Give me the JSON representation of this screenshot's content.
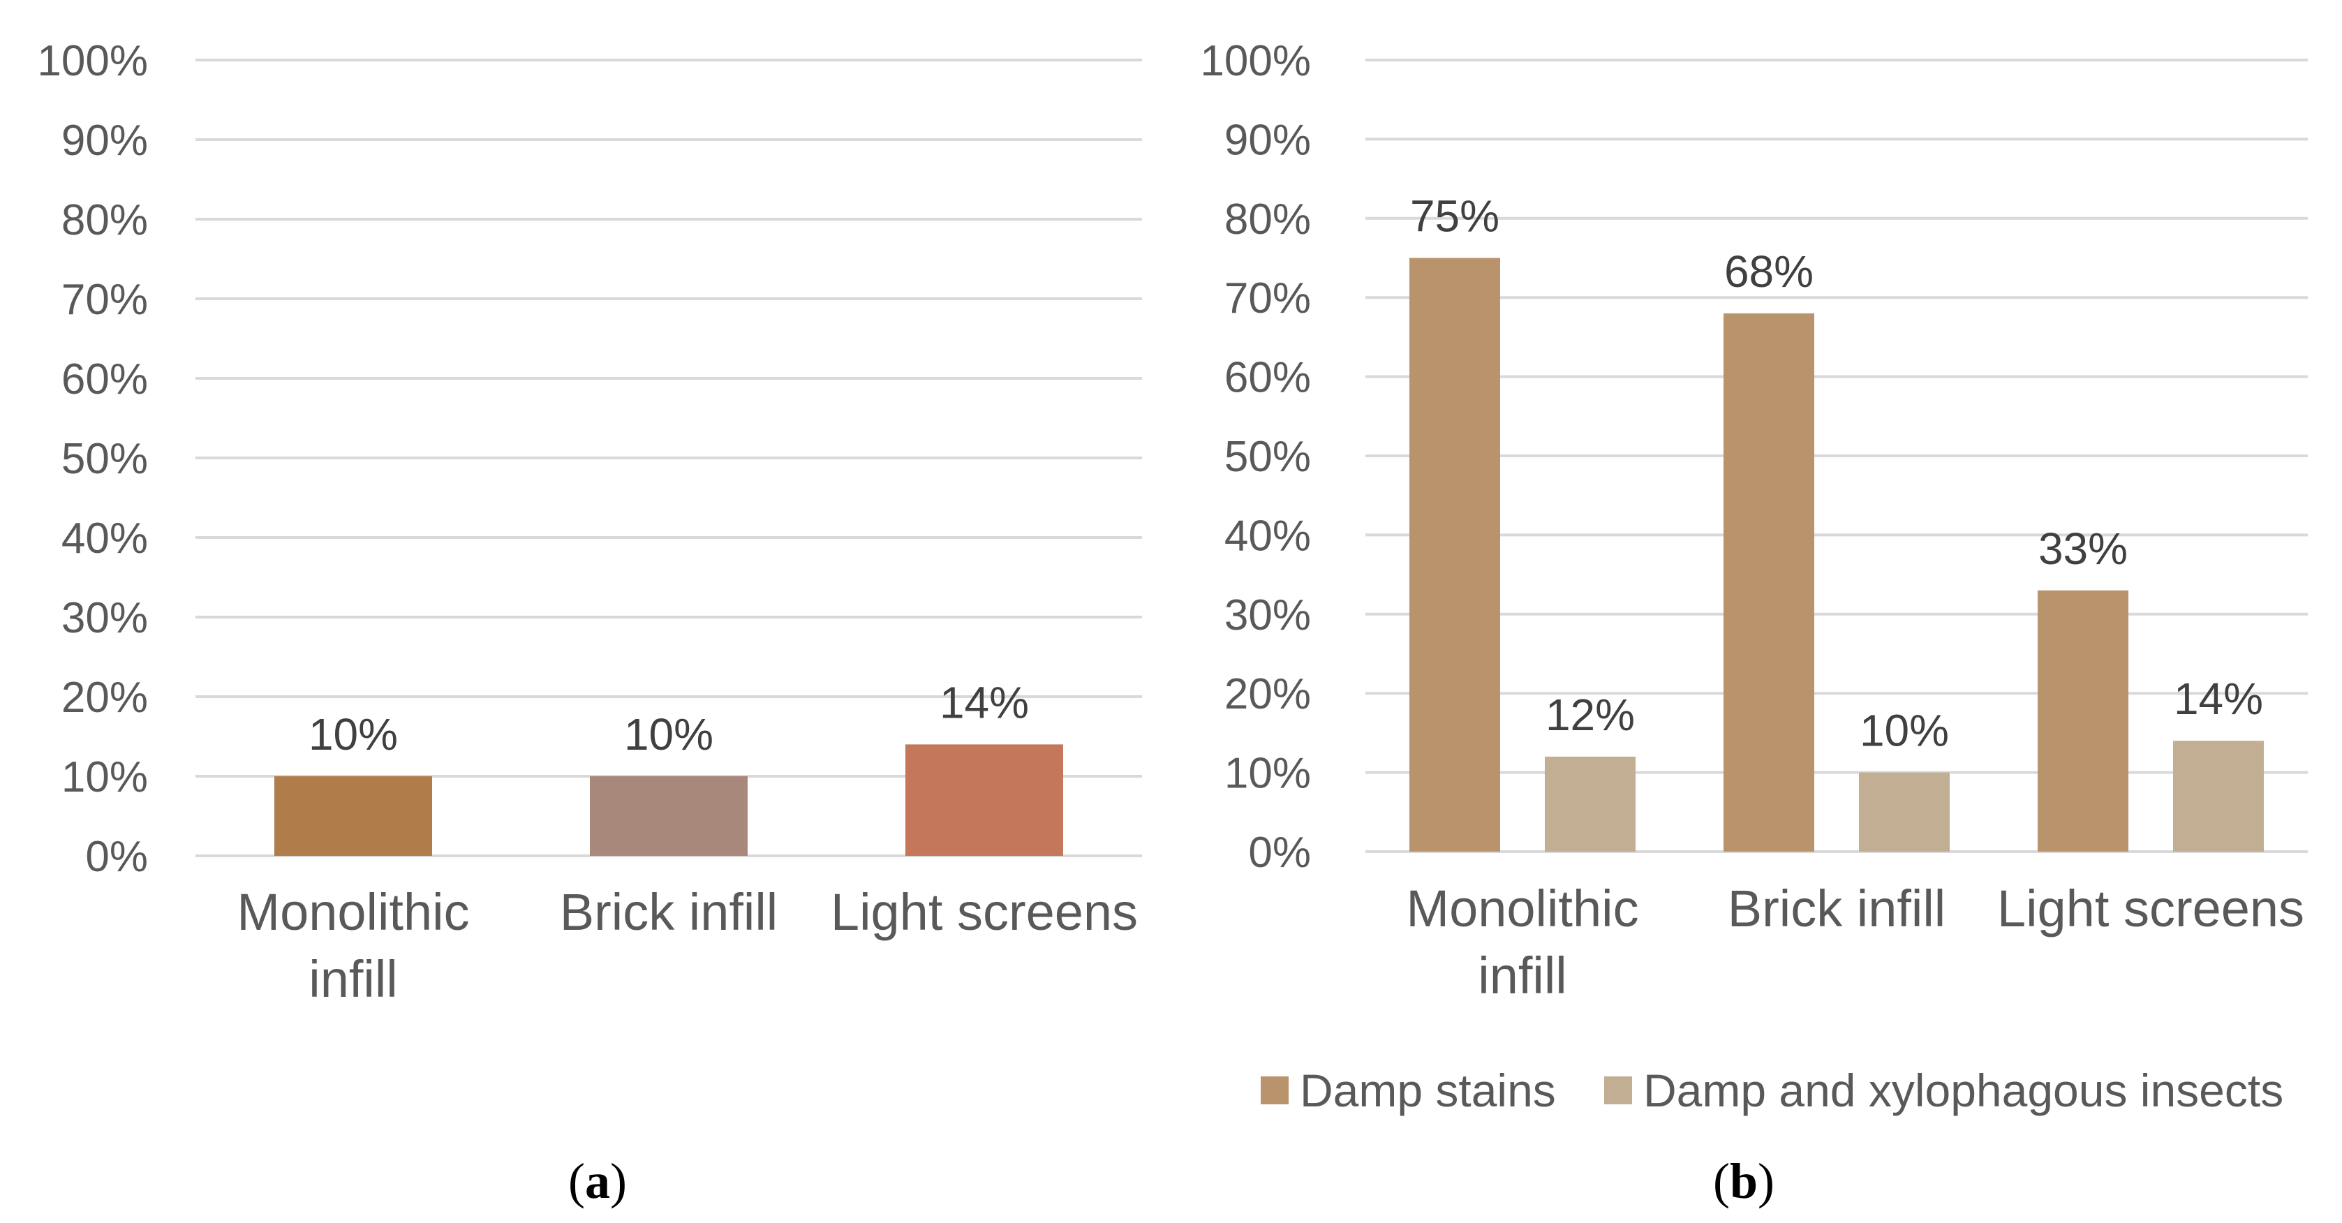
{
  "chart_data": [
    {
      "panel_id": "a",
      "type": "bar",
      "categories": [
        "Monolithic infill",
        "Brick infill",
        "Light screens"
      ],
      "category_lines": [
        [
          "Monolithic",
          "infill"
        ],
        [
          "Brick infill"
        ],
        [
          "Light screens"
        ]
      ],
      "values": [
        10,
        10,
        14
      ],
      "data_labels": [
        "10%",
        "10%",
        "14%"
      ],
      "bar_colors": [
        "#b07c4a",
        "#a9887c",
        "#c4775a"
      ],
      "ylim": [
        0,
        100
      ],
      "yticks": [
        "0%",
        "10%",
        "20%",
        "30%",
        "40%",
        "50%",
        "60%",
        "70%",
        "80%",
        "90%",
        "100%"
      ],
      "grid": true,
      "title": "",
      "xlabel": "",
      "ylabel": "",
      "caption": "a"
    },
    {
      "panel_id": "b",
      "type": "bar",
      "categories": [
        "Monolithic infill",
        "Brick infill",
        "Light screens"
      ],
      "category_lines": [
        [
          "Monolithic",
          "infill"
        ],
        [
          "Brick infill"
        ],
        [
          "Light screens"
        ]
      ],
      "series": [
        {
          "name": "Damp stains",
          "values": [
            75,
            68,
            33
          ],
          "data_labels": [
            "75%",
            "68%",
            "33%"
          ],
          "color": "#b8936b"
        },
        {
          "name": "Damp and xylophagous insects",
          "values": [
            12,
            10,
            14
          ],
          "data_labels": [
            "12%",
            "10%",
            "14%"
          ],
          "color": "#c2ae92"
        }
      ],
      "ylim": [
        0,
        100
      ],
      "yticks": [
        "0%",
        "10%",
        "20%",
        "30%",
        "40%",
        "50%",
        "60%",
        "70%",
        "80%",
        "90%",
        "100%"
      ],
      "grid": true,
      "legend_position": "bottom",
      "title": "",
      "xlabel": "",
      "ylabel": "",
      "caption": "b"
    }
  ]
}
